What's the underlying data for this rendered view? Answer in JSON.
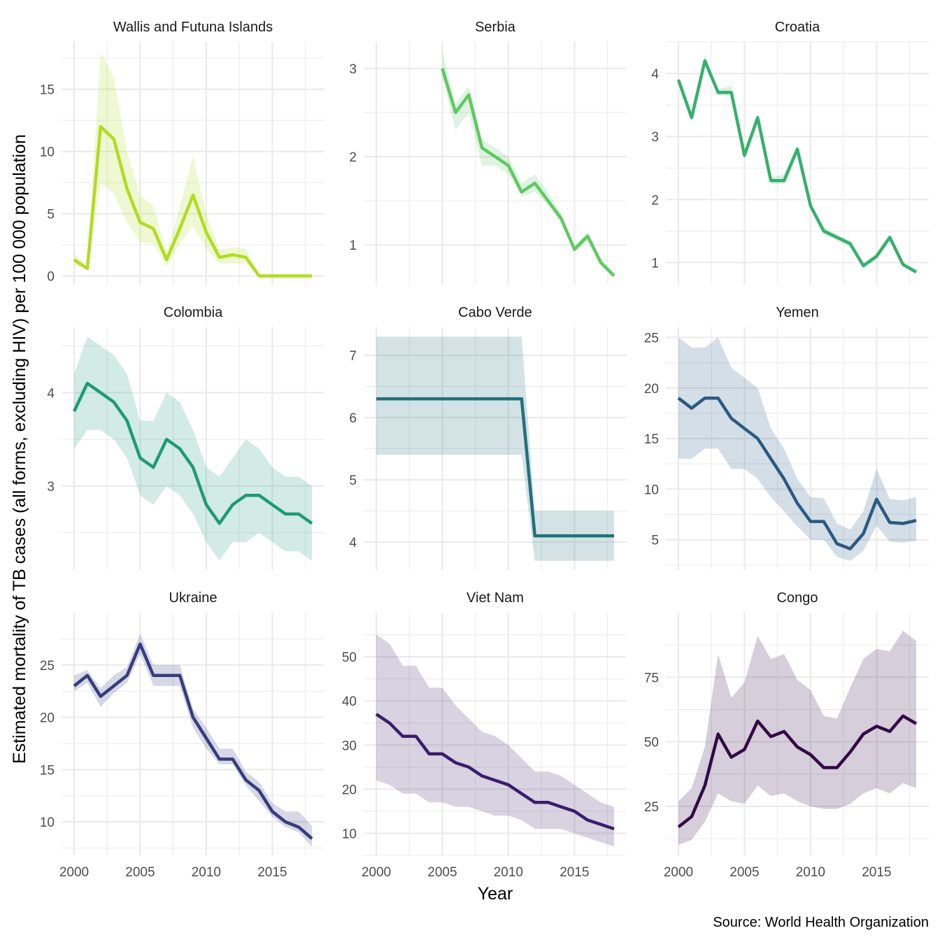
{
  "chart_data": {
    "type": "line",
    "layout": "facet-grid-3x3",
    "xlabel": "Year",
    "ylabel": "Estimated mortality of TB cases (all forms, excluding HIV) per 100 000 population",
    "caption": "Source: World Health Organization",
    "x_ticks": [
      2000,
      2005,
      2010,
      2015
    ],
    "x_range": [
      2000,
      2018
    ],
    "legend": "none",
    "grid": true,
    "panels": [
      {
        "title": "Wallis and Futuna Islands",
        "color": "#b0dd1f",
        "ylim": [
          -0.7,
          18.8
        ],
        "y_ticks": [
          0,
          5,
          10,
          15
        ],
        "x": [
          2000,
          2001,
          2002,
          2003,
          2004,
          2005,
          2006,
          2007,
          2008,
          2009,
          2010,
          2011,
          2012,
          2013,
          2014,
          2015,
          2016,
          2017,
          2018
        ],
        "values": [
          1.3,
          0.6,
          12.0,
          11.0,
          7.0,
          4.3,
          3.8,
          1.3,
          3.8,
          6.5,
          3.5,
          1.5,
          1.7,
          1.5,
          0.0,
          0.0,
          0.0,
          0.0,
          0.0
        ],
        "lower": [
          0.9,
          0.5,
          7.5,
          6.6,
          4.3,
          2.7,
          2.6,
          0.8,
          2.6,
          4.0,
          2.2,
          1.0,
          1.0,
          1.0,
          0.0,
          0.0,
          0.0,
          0.0,
          0.0
        ],
        "upper": [
          1.8,
          0.8,
          18.0,
          16.0,
          10.0,
          6.5,
          5.6,
          1.9,
          5.6,
          9.7,
          5.0,
          2.1,
          2.3,
          2.2,
          0.0,
          0.0,
          0.0,
          0.0,
          0.0
        ]
      },
      {
        "title": "Serbia",
        "color": "#5ec962",
        "ylim": [
          0.55,
          3.3
        ],
        "y_ticks": [
          1,
          2,
          3
        ],
        "x": [
          2005,
          2006,
          2007,
          2008,
          2009,
          2010,
          2011,
          2012,
          2013,
          2014,
          2015,
          2016,
          2017,
          2018
        ],
        "values": [
          3.0,
          2.5,
          2.7,
          2.1,
          2.0,
          1.9,
          1.6,
          1.7,
          1.5,
          1.3,
          0.95,
          1.1,
          0.8,
          0.65
        ],
        "lower": [
          2.9,
          2.3,
          2.5,
          1.9,
          1.9,
          1.8,
          1.55,
          1.6,
          1.45,
          1.25,
          0.92,
          1.05,
          0.78,
          0.62
        ],
        "upper": [
          3.2,
          2.6,
          2.8,
          2.2,
          2.1,
          2.0,
          1.7,
          1.8,
          1.6,
          1.35,
          1.0,
          1.15,
          0.85,
          0.68
        ]
      },
      {
        "title": "Croatia",
        "color": "#35b06d",
        "ylim": [
          0.65,
          4.5
        ],
        "y_ticks": [
          1,
          2,
          3,
          4
        ],
        "x": [
          2000,
          2001,
          2002,
          2003,
          2004,
          2005,
          2006,
          2007,
          2008,
          2009,
          2010,
          2011,
          2012,
          2013,
          2014,
          2015,
          2016,
          2017,
          2018
        ],
        "values": [
          3.9,
          3.3,
          4.2,
          3.7,
          3.7,
          2.7,
          3.3,
          2.3,
          2.3,
          2.8,
          1.9,
          1.5,
          1.4,
          1.3,
          0.95,
          1.1,
          1.4,
          0.97,
          0.85
        ],
        "lower": [
          3.85,
          3.25,
          4.15,
          3.65,
          3.65,
          2.65,
          3.25,
          2.25,
          2.25,
          2.75,
          1.85,
          1.45,
          1.35,
          1.25,
          0.92,
          1.05,
          1.35,
          0.94,
          0.82
        ],
        "upper": [
          3.95,
          3.35,
          4.3,
          3.75,
          3.8,
          2.75,
          3.35,
          2.35,
          2.4,
          2.85,
          1.95,
          1.55,
          1.45,
          1.35,
          0.98,
          1.15,
          1.45,
          1.0,
          0.88
        ]
      },
      {
        "title": "Colombia",
        "color": "#1f9a76",
        "ylim": [
          2.1,
          4.7
        ],
        "y_ticks": [
          3,
          4
        ],
        "x": [
          2000,
          2001,
          2002,
          2003,
          2004,
          2005,
          2006,
          2007,
          2008,
          2009,
          2010,
          2011,
          2012,
          2013,
          2014,
          2015,
          2016,
          2017,
          2018
        ],
        "values": [
          3.8,
          4.1,
          4.0,
          3.9,
          3.7,
          3.3,
          3.2,
          3.5,
          3.4,
          3.2,
          2.8,
          2.6,
          2.8,
          2.9,
          2.9,
          2.8,
          2.7,
          2.7,
          2.6
        ],
        "lower": [
          3.4,
          3.6,
          3.6,
          3.5,
          3.3,
          2.9,
          2.8,
          3.0,
          2.9,
          2.7,
          2.4,
          2.2,
          2.4,
          2.4,
          2.5,
          2.4,
          2.3,
          2.3,
          2.2
        ],
        "upper": [
          4.2,
          4.6,
          4.5,
          4.4,
          4.2,
          3.7,
          3.7,
          4.0,
          3.9,
          3.6,
          3.2,
          3.1,
          3.3,
          3.5,
          3.4,
          3.2,
          3.1,
          3.1,
          3.0
        ]
      },
      {
        "title": "Cabo Verde",
        "color": "#21717c",
        "ylim": [
          3.55,
          7.45
        ],
        "y_ticks": [
          4,
          5,
          6,
          7
        ],
        "x": [
          2000,
          2001,
          2002,
          2003,
          2004,
          2005,
          2006,
          2007,
          2008,
          2009,
          2010,
          2011,
          2012,
          2013,
          2014,
          2015,
          2016,
          2017,
          2018
        ],
        "values": [
          6.3,
          6.3,
          6.3,
          6.3,
          6.3,
          6.3,
          6.3,
          6.3,
          6.3,
          6.3,
          6.3,
          6.3,
          4.1,
          4.1,
          4.1,
          4.1,
          4.1,
          4.1,
          4.1
        ],
        "lower": [
          5.4,
          5.4,
          5.4,
          5.4,
          5.4,
          5.4,
          5.4,
          5.4,
          5.4,
          5.4,
          5.4,
          5.4,
          3.7,
          3.7,
          3.7,
          3.7,
          3.7,
          3.7,
          3.7
        ],
        "upper": [
          7.3,
          7.3,
          7.3,
          7.3,
          7.3,
          7.3,
          7.3,
          7.3,
          7.3,
          7.3,
          7.3,
          7.3,
          4.5,
          4.5,
          4.5,
          4.5,
          4.5,
          4.5,
          4.5
        ]
      },
      {
        "title": "Yemen",
        "color": "#2a5a83",
        "ylim": [
          2.0,
          26.0
        ],
        "y_ticks": [
          5,
          10,
          15,
          20,
          25
        ],
        "x": [
          2000,
          2001,
          2002,
          2003,
          2004,
          2005,
          2006,
          2007,
          2008,
          2009,
          2010,
          2011,
          2012,
          2013,
          2014,
          2015,
          2016,
          2017,
          2018
        ],
        "values": [
          19,
          18,
          19,
          19,
          17,
          16,
          15,
          13,
          11,
          8.6,
          6.8,
          6.8,
          4.6,
          4.1,
          5.6,
          9.0,
          6.7,
          6.6,
          6.9
        ],
        "lower": [
          13,
          13,
          14,
          14,
          12,
          12,
          11,
          9.2,
          7.8,
          6.3,
          5.0,
          5.0,
          3.3,
          2.9,
          3.9,
          6.4,
          4.8,
          4.7,
          4.9
        ],
        "upper": [
          25,
          24,
          24,
          25,
          22,
          21,
          20,
          16,
          14,
          11,
          9.2,
          9.1,
          6.6,
          6.0,
          7.8,
          12,
          9.0,
          8.9,
          9.2
        ]
      },
      {
        "title": "Ukraine",
        "color": "#343d7d",
        "ylim": [
          6.8,
          30.0
        ],
        "y_ticks": [
          10,
          15,
          20,
          25
        ],
        "x": [
          2000,
          2001,
          2002,
          2003,
          2004,
          2005,
          2006,
          2007,
          2008,
          2009,
          2010,
          2011,
          2012,
          2013,
          2014,
          2015,
          2016,
          2017,
          2018
        ],
        "values": [
          23,
          24,
          22,
          23,
          24,
          27,
          24,
          24,
          24,
          20,
          18,
          16,
          16,
          14,
          13,
          11,
          10,
          9.5,
          8.4
        ],
        "lower": [
          22.5,
          23.3,
          21,
          22.3,
          23.3,
          26,
          23,
          23,
          23,
          19,
          17,
          15.5,
          15.5,
          13.5,
          12,
          10.5,
          9.5,
          9,
          7.6
        ],
        "upper": [
          24,
          24.5,
          22.8,
          24,
          24.8,
          28,
          25,
          25,
          25,
          20.8,
          19,
          17,
          17,
          14.8,
          13.8,
          11.8,
          11,
          11,
          9.6
        ]
      },
      {
        "title": "Viet Nam",
        "color": "#3b1c6b",
        "ylim": [
          5.0,
          60.0
        ],
        "y_ticks": [
          10,
          20,
          30,
          40,
          50
        ],
        "x": [
          2000,
          2001,
          2002,
          2003,
          2004,
          2005,
          2006,
          2007,
          2008,
          2009,
          2010,
          2011,
          2012,
          2013,
          2014,
          2015,
          2016,
          2017,
          2018
        ],
        "values": [
          37,
          35,
          32,
          32,
          28,
          28,
          26,
          25,
          23,
          22,
          21,
          19,
          17,
          17,
          16,
          15,
          13,
          12,
          11
        ],
        "lower": [
          22,
          21,
          19,
          19,
          17,
          17,
          16,
          16,
          15,
          14,
          14,
          13,
          11,
          11,
          11,
          10,
          9,
          8,
          7
        ],
        "upper": [
          55,
          53,
          48,
          48,
          43,
          43,
          39,
          36,
          33,
          32,
          30,
          27,
          24,
          24,
          23,
          21,
          19,
          17,
          16
        ]
      },
      {
        "title": "Congo",
        "color": "#330a45",
        "ylim": [
          6.0,
          100.0
        ],
        "y_ticks": [
          25,
          50,
          75
        ],
        "x": [
          2000,
          2001,
          2002,
          2003,
          2004,
          2005,
          2006,
          2007,
          2008,
          2009,
          2010,
          2011,
          2012,
          2013,
          2014,
          2015,
          2016,
          2017,
          2018
        ],
        "values": [
          17,
          21,
          33,
          53,
          44,
          47,
          58,
          52,
          54,
          48,
          45,
          40,
          40,
          46,
          53,
          56,
          54,
          60,
          57
        ],
        "lower": [
          10,
          12,
          19,
          30,
          27,
          26,
          33,
          29,
          30,
          27,
          25,
          24,
          24,
          26,
          30,
          32,
          30,
          34,
          32
        ],
        "upper": [
          27,
          32,
          48,
          84,
          67,
          73,
          91,
          82,
          84,
          74,
          70,
          60,
          59,
          71,
          82,
          86,
          85,
          93,
          89
        ]
      }
    ]
  }
}
